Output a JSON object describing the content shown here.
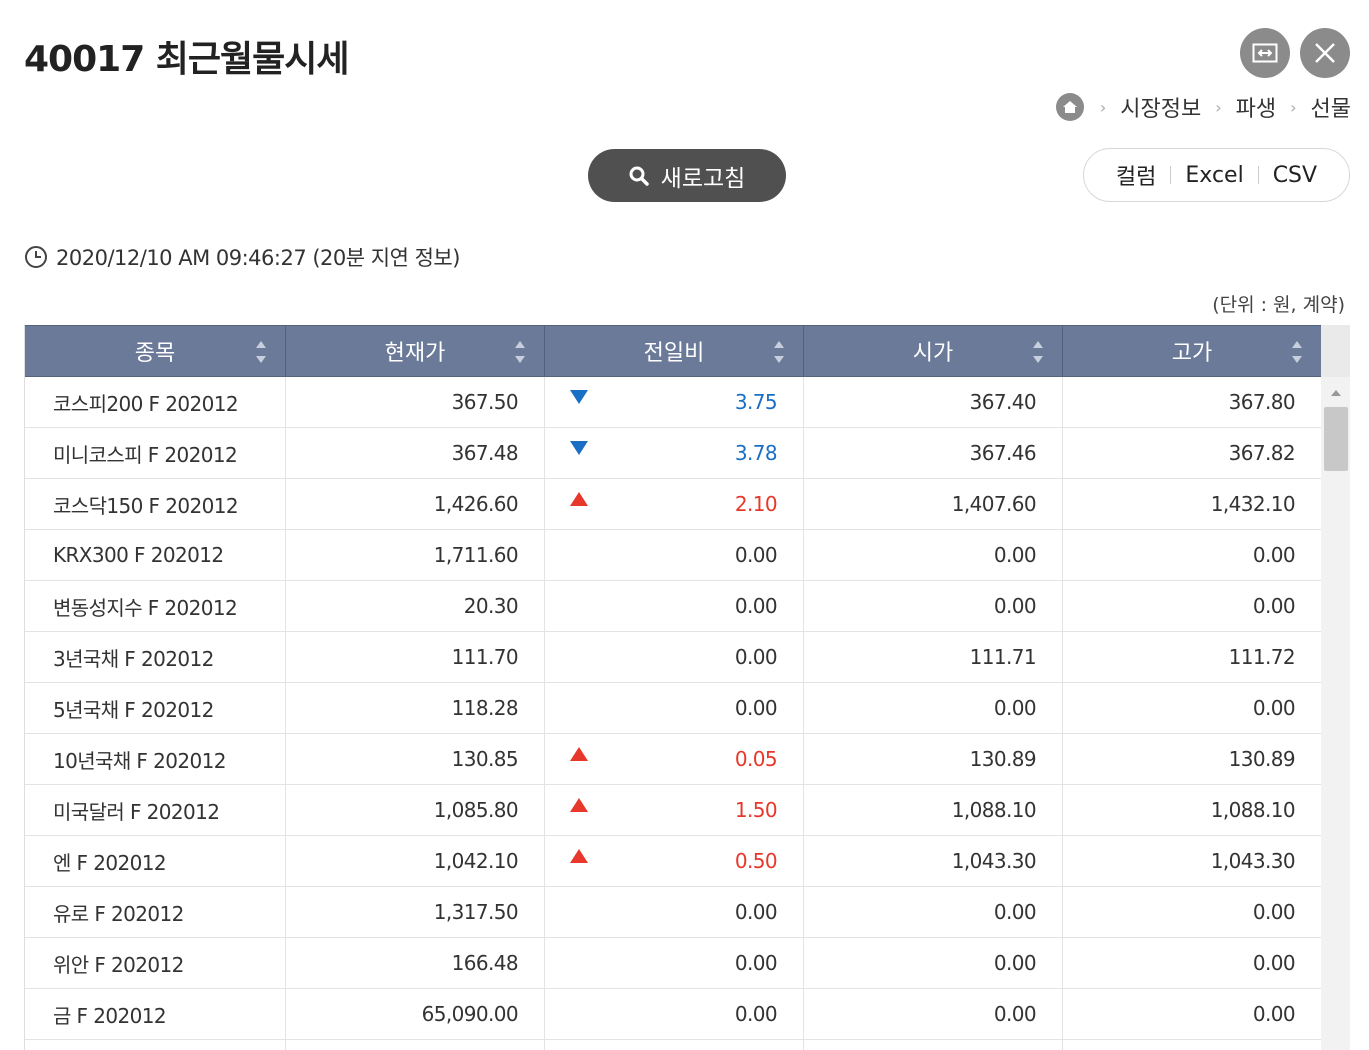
{
  "header": {
    "title": "40017 최근월물시세"
  },
  "breadcrumb": [
    "시장정보",
    "파생",
    "선물"
  ],
  "toolbar": {
    "refresh_label": "새로고침",
    "column_label": "컬럼",
    "excel_label": "Excel",
    "csv_label": "CSV"
  },
  "timestamp": "2020/12/10 AM 09:46:27 (20분 지연 정보)",
  "unit_note": "(단위 : 원, 계약)",
  "colors": {
    "header_bg": "#6b7a99",
    "down": "#1a6fc4",
    "up": "#e8372b"
  },
  "table": {
    "columns": [
      "종목",
      "현재가",
      "전일비",
      "시가",
      "고가"
    ],
    "rows": [
      {
        "name": "코스피200 F 202012",
        "price": "367.50",
        "dir": "down",
        "change": "3.75",
        "open": "367.40",
        "high": "367.80"
      },
      {
        "name": "미니코스피 F 202012",
        "price": "367.48",
        "dir": "down",
        "change": "3.78",
        "open": "367.46",
        "high": "367.82"
      },
      {
        "name": "코스닥150 F 202012",
        "price": "1,426.60",
        "dir": "up",
        "change": "2.10",
        "open": "1,407.60",
        "high": "1,432.10"
      },
      {
        "name": "KRX300 F 202012",
        "price": "1,711.60",
        "dir": "",
        "change": "0.00",
        "open": "0.00",
        "high": "0.00"
      },
      {
        "name": "변동성지수 F 202012",
        "price": "20.30",
        "dir": "",
        "change": "0.00",
        "open": "0.00",
        "high": "0.00"
      },
      {
        "name": "3년국채 F 202012",
        "price": "111.70",
        "dir": "",
        "change": "0.00",
        "open": "111.71",
        "high": "111.72"
      },
      {
        "name": "5년국채 F 202012",
        "price": "118.28",
        "dir": "",
        "change": "0.00",
        "open": "0.00",
        "high": "0.00"
      },
      {
        "name": "10년국채 F 202012",
        "price": "130.85",
        "dir": "up",
        "change": "0.05",
        "open": "130.89",
        "high": "130.89"
      },
      {
        "name": "미국달러 F 202012",
        "price": "1,085.80",
        "dir": "up",
        "change": "1.50",
        "open": "1,088.10",
        "high": "1,088.10"
      },
      {
        "name": "엔 F 202012",
        "price": "1,042.10",
        "dir": "up",
        "change": "0.50",
        "open": "1,043.30",
        "high": "1,043.30"
      },
      {
        "name": "유로 F 202012",
        "price": "1,317.50",
        "dir": "",
        "change": "0.00",
        "open": "0.00",
        "high": "0.00"
      },
      {
        "name": "위안 F 202012",
        "price": "166.48",
        "dir": "",
        "change": "0.00",
        "open": "0.00",
        "high": "0.00"
      },
      {
        "name": "금 F 202012",
        "price": "65,090.00",
        "dir": "",
        "change": "0.00",
        "open": "0.00",
        "high": "0.00"
      },
      {
        "name": "",
        "price": "",
        "dir": "",
        "change": "",
        "open": "",
        "high": ""
      }
    ]
  }
}
